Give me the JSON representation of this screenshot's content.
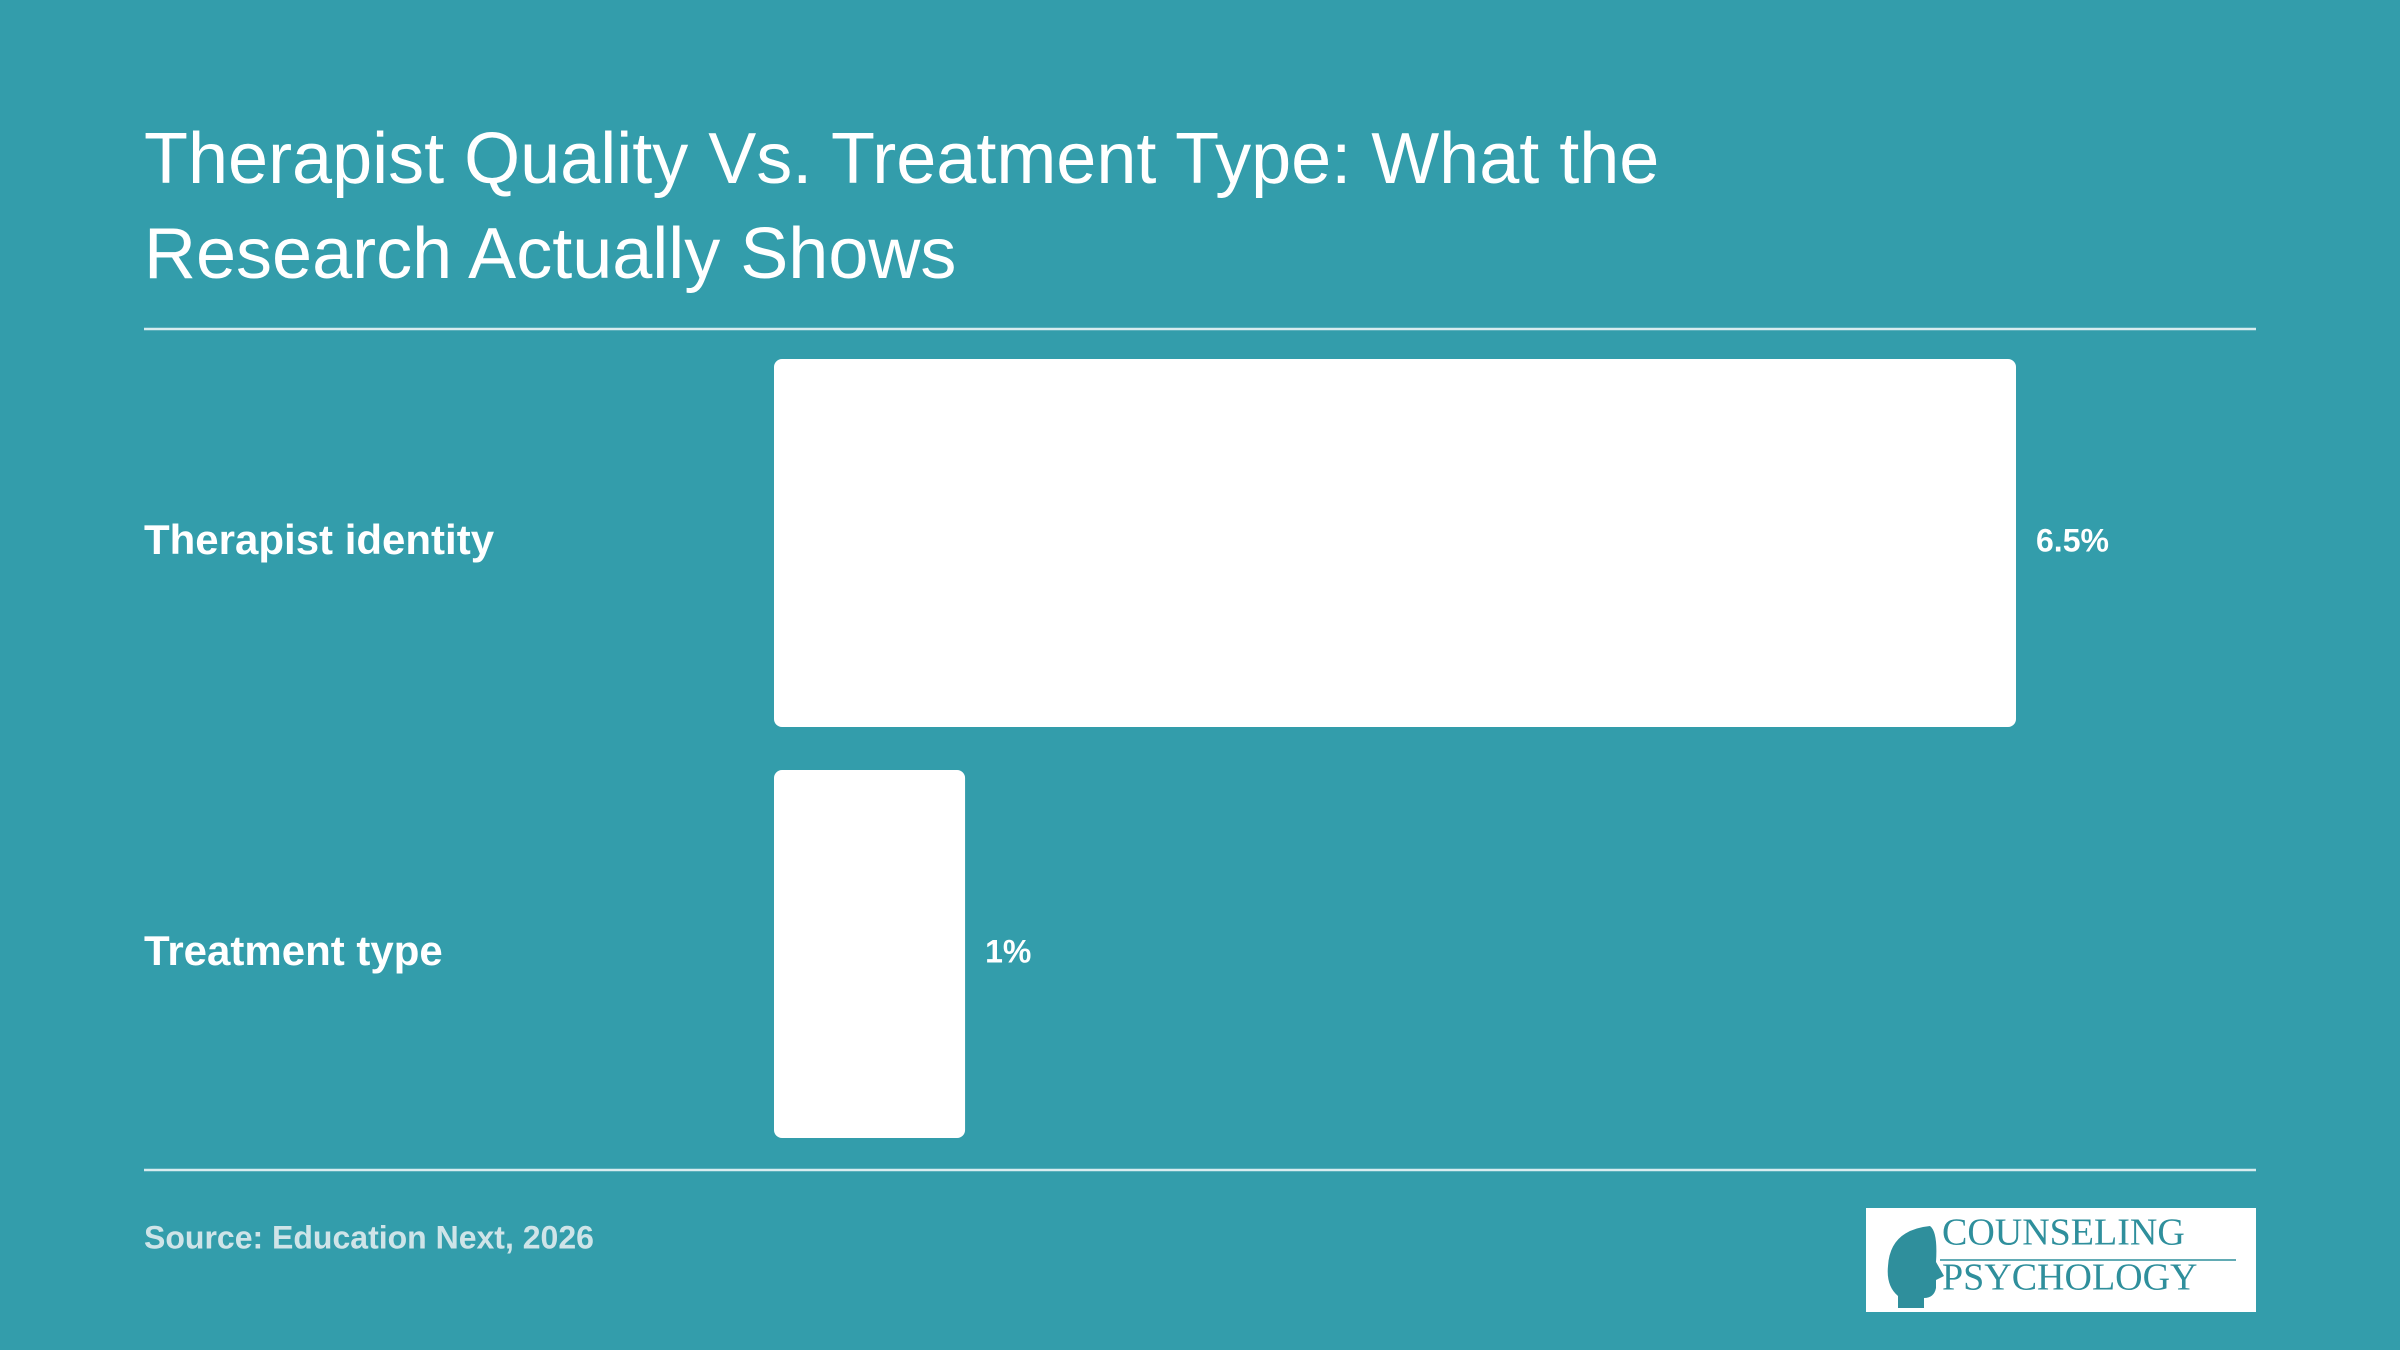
{
  "chart_data": {
    "type": "bar",
    "orientation": "horizontal",
    "title": "Therapist Quality Vs. Treatment Type: What the Research Actually Shows",
    "categories": [
      "Therapist identity",
      "Treatment type"
    ],
    "values": [
      6.5,
      1
    ],
    "value_labels": [
      "6.5%",
      "1%"
    ],
    "color": "#ffffff",
    "source": "Source: Education Next, 2026"
  },
  "logo": {
    "line1": "COUNSELING",
    "line2": "PSYCHOLOGY"
  }
}
